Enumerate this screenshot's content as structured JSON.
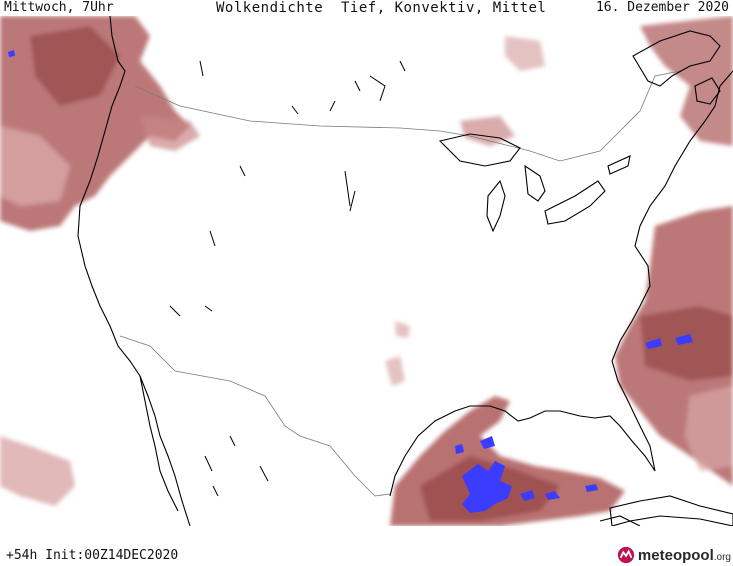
{
  "header": {
    "left": "Mittwoch, 7Uhr",
    "title": "Wolkendichte  Tief, Konvektiv, Mittel",
    "right": "16. Dezember 2020"
  },
  "footer": {
    "run_info": "+54h Init:00Z14DEC2020",
    "logo_brand": "meteopool",
    "logo_tld": ".org"
  },
  "colors": {
    "cloud_light": "#d9a8a8",
    "cloud_mid": "#b56a6a",
    "cloud_dark": "#8f3d3d",
    "convective": "#3c3cff",
    "coastline": "#000000",
    "border": "#7a7a7a",
    "logo_accent": "#c0124a"
  },
  "icons": {
    "logo": "meteopool-logo-icon"
  }
}
